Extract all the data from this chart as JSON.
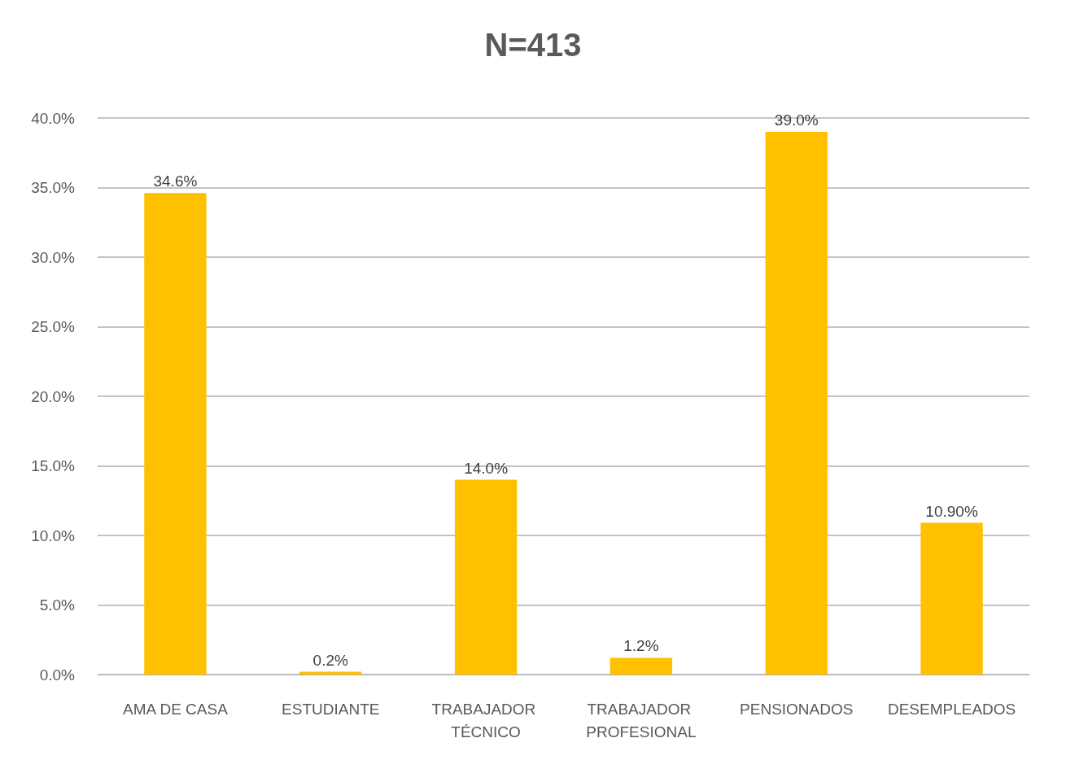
{
  "chart_data": {
    "type": "bar",
    "title": "N=413",
    "categories": [
      "AMA DE CASA",
      "ESTUDIANTE",
      "TRABAJADOR TÉCNICO",
      "TRABAJADOR PROFESIONAL",
      "PENSIONADOS",
      "DESEMPLEADOS"
    ],
    "values": [
      34.6,
      0.2,
      14.0,
      1.2,
      39.0,
      10.9
    ],
    "value_labels": [
      "34.6%",
      "0.2%",
      "14.0%",
      "1.2%",
      "39.0%",
      "10.90%"
    ],
    "color": "#ffc000",
    "ylim": [
      0,
      40
    ],
    "yticks": [
      {
        "value": 0,
        "label": "0.0%"
      },
      {
        "value": 5,
        "label": "5.0%"
      },
      {
        "value": 10,
        "label": "10.0%"
      },
      {
        "value": 15,
        "label": "15.0%"
      },
      {
        "value": 20,
        "label": "20.0%"
      },
      {
        "value": 25,
        "label": "25.0%"
      },
      {
        "value": 30,
        "label": "30.0%"
      },
      {
        "value": 35,
        "label": "35.0%"
      },
      {
        "value": 40,
        "label": "40.0%"
      }
    ],
    "grid": true
  }
}
